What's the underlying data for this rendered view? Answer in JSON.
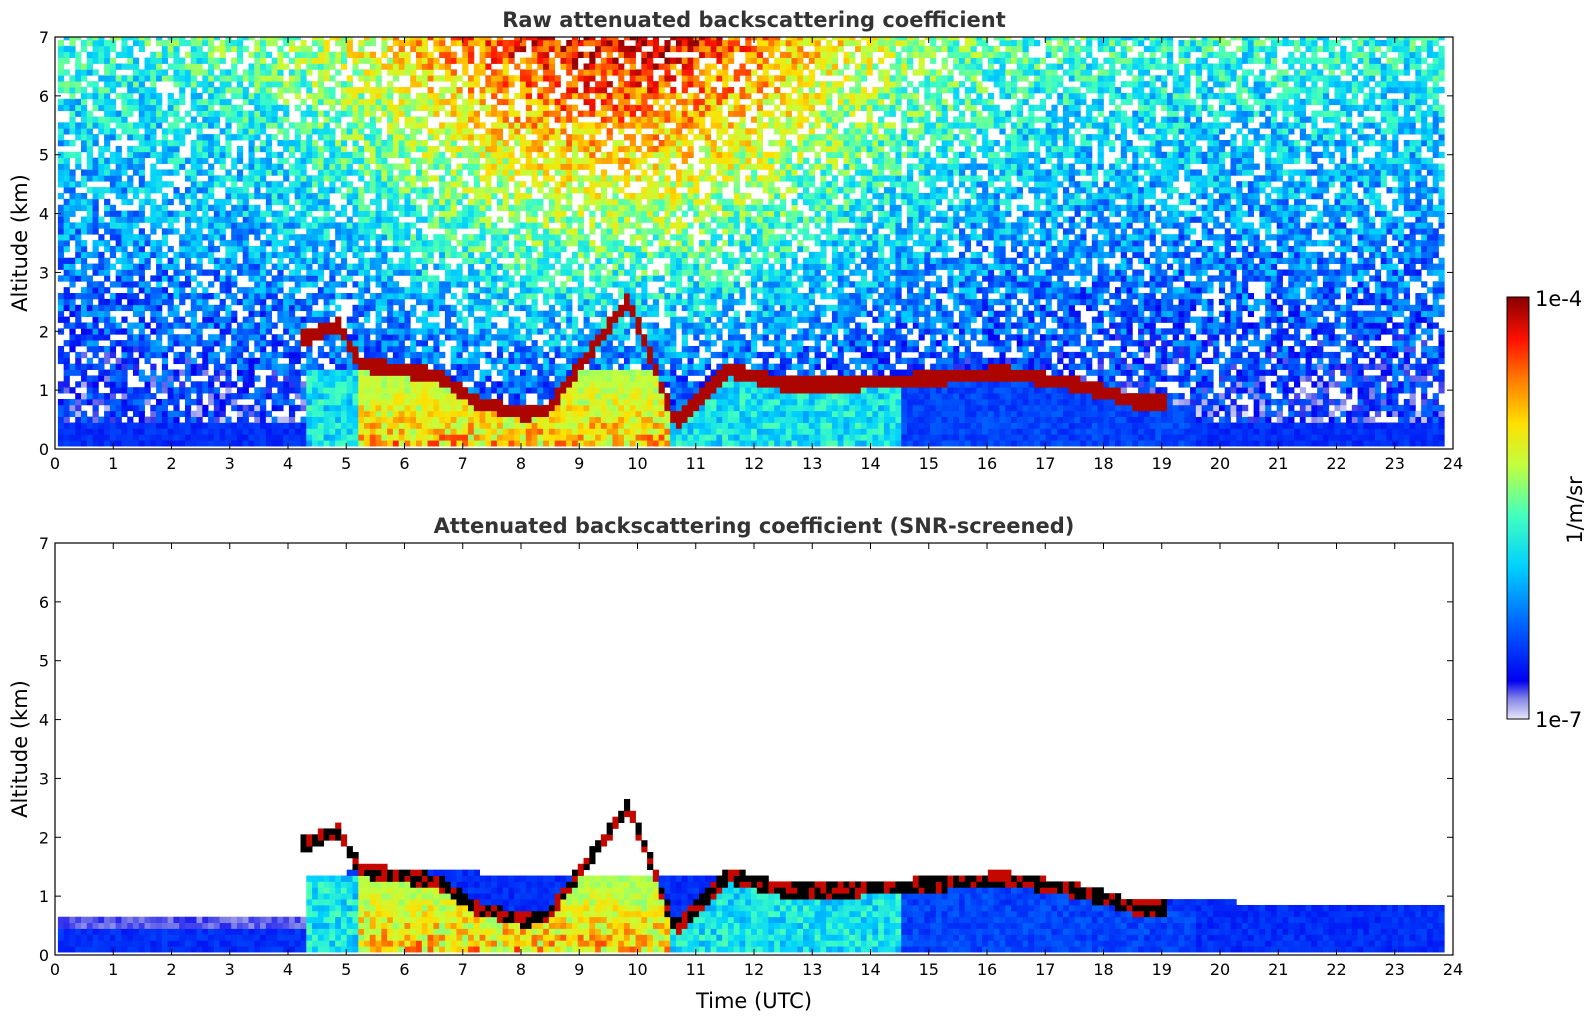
{
  "chart_data": [
    {
      "type": "heatmap",
      "title": "Raw attenuated backscattering coefficient",
      "xlabel": "",
      "ylabel": "Altitude (km)",
      "xlim": [
        0,
        24
      ],
      "ylim": [
        0,
        7
      ],
      "x_ticks": [
        "0",
        "1",
        "2",
        "3",
        "4",
        "5",
        "6",
        "7",
        "8",
        "9",
        "10",
        "11",
        "12",
        "13",
        "14",
        "15",
        "16",
        "17",
        "18",
        "19",
        "20",
        "21",
        "22",
        "23",
        "24"
      ],
      "y_ticks": [
        "0",
        "1",
        "2",
        "3",
        "4",
        "5",
        "6",
        "7"
      ],
      "cloud_layer_km": [
        {
          "x": 4.3,
          "y": 1.85
        },
        {
          "x": 4.8,
          "y": 2.05
        },
        {
          "x": 5.2,
          "y": 1.4
        },
        {
          "x": 6.5,
          "y": 1.2
        },
        {
          "x": 7.2,
          "y": 0.75
        },
        {
          "x": 8.0,
          "y": 0.55
        },
        {
          "x": 8.4,
          "y": 0.6
        },
        {
          "x": 9.8,
          "y": 2.5
        },
        {
          "x": 10.6,
          "y": 0.4
        },
        {
          "x": 11.5,
          "y": 1.3
        },
        {
          "x": 12.5,
          "y": 1.05
        },
        {
          "x": 13.5,
          "y": 1.05
        },
        {
          "x": 15.0,
          "y": 1.15
        },
        {
          "x": 16.2,
          "y": 1.25
        },
        {
          "x": 17.5,
          "y": 1.05
        },
        {
          "x": 18.5,
          "y": 0.75
        }
      ],
      "noise_note": "noisy high-altitude signal"
    },
    {
      "type": "heatmap",
      "title": "Attenuated backscattering coefficient (SNR-screened)",
      "xlabel": "Time (UTC)",
      "ylabel": "Altitude (km)",
      "xlim": [
        0,
        24
      ],
      "ylim": [
        0,
        7
      ],
      "x_ticks": [
        "0",
        "1",
        "2",
        "3",
        "4",
        "5",
        "6",
        "7",
        "8",
        "9",
        "10",
        "11",
        "12",
        "13",
        "14",
        "15",
        "16",
        "17",
        "18",
        "19",
        "20",
        "21",
        "22",
        "23",
        "24"
      ],
      "y_ticks": [
        "0",
        "1",
        "2",
        "3",
        "4",
        "5",
        "6",
        "7"
      ],
      "boundary_layer_top_km": [
        {
          "x": 0,
          "y": 0.6
        },
        {
          "x": 4.3,
          "y": 0.6
        },
        {
          "x": 5.0,
          "y": 1.4
        },
        {
          "x": 14.0,
          "y": 1.2
        },
        {
          "x": 19.0,
          "y": 0.9
        },
        {
          "x": 21.5,
          "y": 0.8
        },
        {
          "x": 23.8,
          "y": 0.75
        }
      ]
    }
  ],
  "colorbar": {
    "label": "1/m/sr",
    "max_label": "1e-4",
    "min_label": "1e-7",
    "scale": "log"
  }
}
